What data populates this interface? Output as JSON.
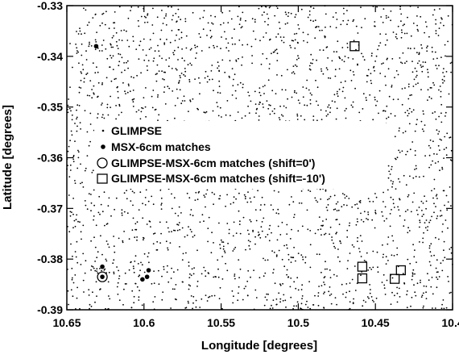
{
  "chart_data": {
    "type": "scatter",
    "xlabel": "Longitude [degrees]",
    "ylabel": "Latitude [degrees]",
    "xlim": [
      10.65,
      10.4
    ],
    "ylim": [
      -0.39,
      -0.33
    ],
    "xticks": [
      "10.65",
      "10.6",
      "10.55",
      "10.5",
      "10.45",
      "10.4"
    ],
    "yticks": [
      "-0.33",
      "-0.34",
      "-0.35",
      "-0.36",
      "-0.37",
      "-0.38",
      "-0.39"
    ],
    "grid": false,
    "legend_position": "center-left",
    "series": [
      {
        "name": "GLIMPSE",
        "marker": "dot",
        "note_density": "dense uniform field of sources covering the full region",
        "approx_count": 2400,
        "x_range": [
          10.65,
          10.4
        ],
        "y_range": [
          -0.39,
          -0.33
        ]
      },
      {
        "name": "MSX-6cm matches",
        "marker": "filled-circle",
        "points": [
          {
            "x": 10.631,
            "y": -0.338
          },
          {
            "x": 10.627,
            "y": -0.3815
          },
          {
            "x": 10.627,
            "y": -0.3835
          },
          {
            "x": 10.601,
            "y": -0.384
          },
          {
            "x": 10.598,
            "y": -0.3835
          },
          {
            "x": 10.597,
            "y": -0.3822
          }
        ]
      },
      {
        "name": "GLIMPSE-MSX-6cm matches (shift=0')",
        "marker": "open-circle",
        "points": [
          {
            "x": 10.627,
            "y": -0.3835
          }
        ]
      },
      {
        "name": "GLIMPSE-MSX-6cm matches (shift=-10')",
        "marker": "open-square",
        "points": [
          {
            "x": 10.4635,
            "y": -0.338
          },
          {
            "x": 10.4585,
            "y": -0.3815
          },
          {
            "x": 10.4585,
            "y": -0.3838
          },
          {
            "x": 10.4375,
            "y": -0.3839
          },
          {
            "x": 10.4335,
            "y": -0.3822
          }
        ]
      }
    ]
  },
  "legend": {
    "items": [
      {
        "label": "GLIMPSE",
        "marker": "dot"
      },
      {
        "label": "MSX-6cm matches",
        "marker": "filled-circle"
      },
      {
        "label": "GLIMPSE-MSX-6cm matches (shift=0')",
        "marker": "open-circle"
      },
      {
        "label": "GLIMPSE-MSX-6cm matches (shift=-10')",
        "marker": "open-square"
      }
    ]
  },
  "colors": {
    "foreground": "#000000",
    "background": "#ffffff"
  }
}
